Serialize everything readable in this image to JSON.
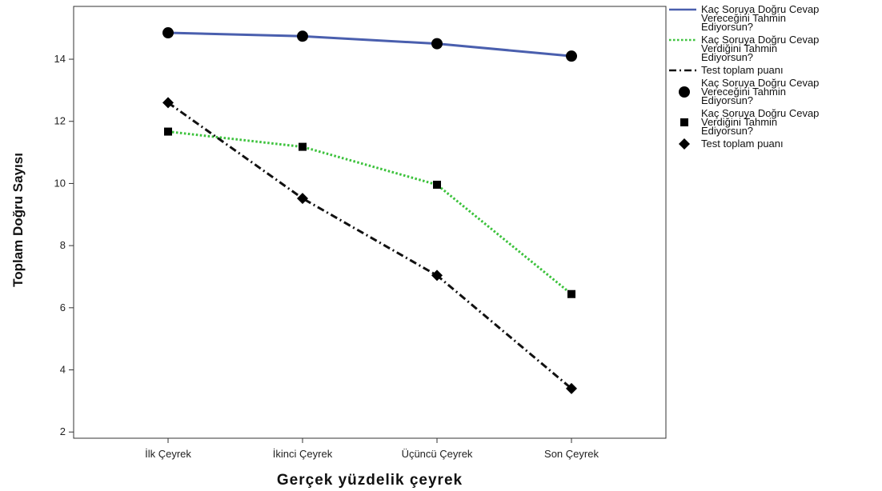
{
  "chart_data": {
    "type": "line",
    "xlabel": "Gerçek yüzdelik çeyrek",
    "ylabel": "Toplam Doğru Sayısı",
    "categories": [
      "İlk Çeyrek",
      "İkinci Çeyrek",
      "Üçüncü Çeyrek",
      "Son Çeyrek"
    ],
    "ylim": [
      1.8,
      15.7
    ],
    "yticks": [
      2,
      4,
      6,
      8,
      10,
      12,
      14
    ],
    "grid": false,
    "legend_position": "right",
    "series": [
      {
        "name": "Kaç Soruya Doğru Cevap Vereceğini Tahmin Ediyorsun?",
        "values": [
          14.85,
          14.74,
          14.5,
          14.1
        ],
        "color": "#4a5fae",
        "line_style": "solid",
        "marker": "circle"
      },
      {
        "name": "Kaç Soruya Doğru Cevap Verdiğini Tahmin Ediyorsun?",
        "values": [
          11.67,
          11.18,
          9.96,
          6.44
        ],
        "color": "#3cc23c",
        "line_style": "dotted",
        "marker": "square"
      },
      {
        "name": "Test toplam puanı",
        "values": [
          12.6,
          9.52,
          7.04,
          3.4
        ],
        "color": "#111111",
        "line_style": "dash-dot",
        "marker": "diamond"
      }
    ],
    "legend": {
      "lines": [
        {
          "text_lines": [
            "Kaç Soruya Doğru Cevap",
            "Vereceğini Tahmin",
            "Ediyorsun?"
          ]
        },
        {
          "text_lines": [
            "Kaç Soruya Doğru Cevap",
            "Verdiğini Tahmin",
            "Ediyorsun?"
          ]
        },
        {
          "text_lines": [
            "Test toplam puanı"
          ]
        }
      ],
      "markers": [
        {
          "text_lines": [
            "Kaç Soruya Doğru Cevap",
            "Vereceğini Tahmin",
            "Ediyorsun?"
          ]
        },
        {
          "text_lines": [
            "Kaç Soruya Doğru Cevap",
            "Verdiğini Tahmin",
            "Ediyorsun?"
          ]
        },
        {
          "text_lines": [
            "Test toplam puanı"
          ]
        }
      ]
    }
  }
}
